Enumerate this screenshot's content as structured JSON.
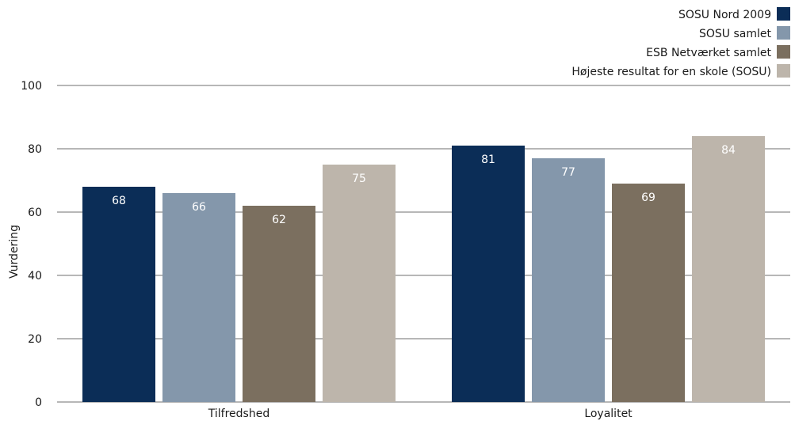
{
  "chart_data": {
    "type": "bar",
    "categories": [
      "Tilfredshed",
      "Loyalitet"
    ],
    "series": [
      {
        "name": "SOSU Nord 2009",
        "values": [
          68,
          81
        ],
        "color": "#0b2d57"
      },
      {
        "name": "SOSU samlet",
        "values": [
          66,
          77
        ],
        "color": "#8497ab"
      },
      {
        "name": "ESB Netværket samlet",
        "values": [
          62,
          69
        ],
        "color": "#7b6f5f"
      },
      {
        "name": "Højeste resultat for en skole (SOSU)",
        "values": [
          75,
          84
        ],
        "color": "#bdb5ab"
      }
    ],
    "data_labels": [
      [
        "68",
        "81"
      ],
      [
        "66",
        "77"
      ],
      [
        "62",
        "69"
      ],
      [
        "75",
        "84"
      ]
    ],
    "ylabel": "Vurdering",
    "ylim": [
      0,
      100
    ],
    "yticks": [
      "0",
      "20",
      "40",
      "60",
      "80",
      "100"
    ],
    "grid": true,
    "legend_position": "top-right"
  }
}
